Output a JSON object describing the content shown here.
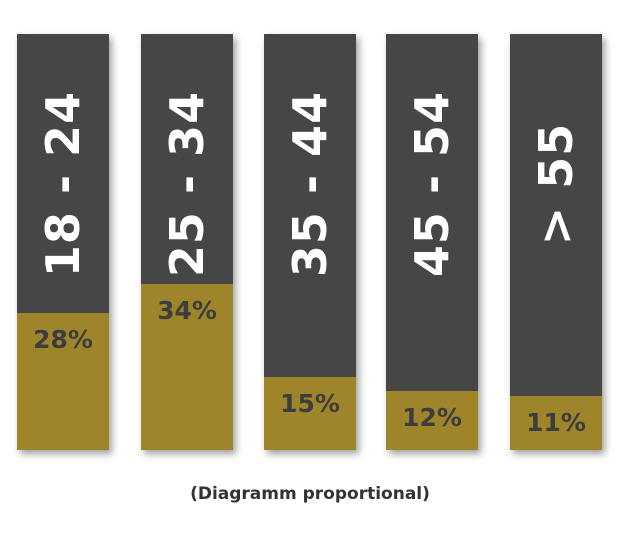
{
  "chart_data": {
    "type": "bar",
    "categories": [
      "18 - 24",
      "25 - 34",
      "35 - 44",
      "45 - 54",
      "> 55"
    ],
    "values": [
      28,
      34,
      15,
      12,
      11
    ],
    "value_labels": [
      "28%",
      "34%",
      "15%",
      "12%",
      "11%"
    ],
    "unit": "%",
    "ylim": [
      0,
      85
    ],
    "caption": "(Diagramm proportional)",
    "grid": false,
    "legend": "none",
    "colors": {
      "track": "#464646",
      "fill": "#9f8529"
    }
  }
}
